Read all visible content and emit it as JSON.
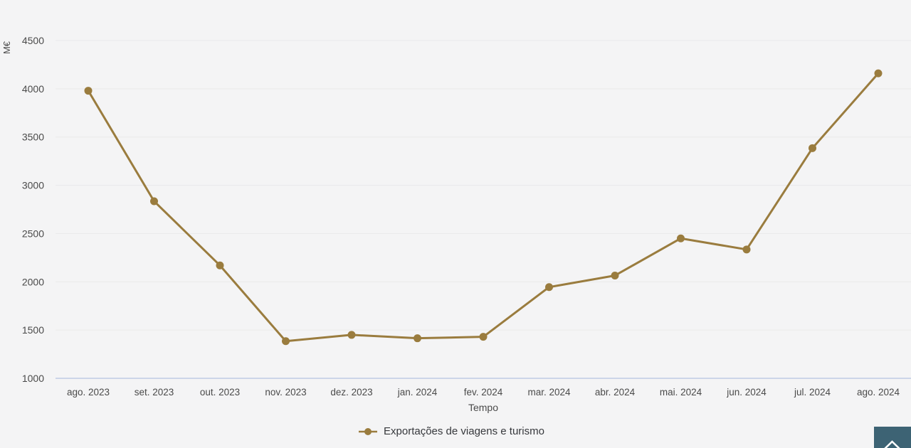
{
  "chart_data": {
    "type": "line",
    "title": "",
    "unit_label": "M€",
    "xlabel": "Tempo",
    "categories": [
      "ago. 2023",
      "set. 2023",
      "out. 2023",
      "nov. 2023",
      "dez. 2023",
      "jan. 2024",
      "fev. 2024",
      "mar. 2024",
      "abr. 2024",
      "mai. 2024",
      "jun. 2024",
      "jul. 2024",
      "ago. 2024"
    ],
    "series": [
      {
        "name": "Exportações de viagens e turismo",
        "values": [
          3980,
          2835,
          2170,
          1385,
          1450,
          1415,
          1430,
          1945,
          2065,
          2450,
          2335,
          3385,
          4160
        ]
      }
    ],
    "ylim": [
      1000,
      4500
    ],
    "ytick_step": 500,
    "yticks": [
      1000,
      1500,
      2000,
      2500,
      3000,
      3500,
      4000,
      4500
    ],
    "grid": true,
    "legend_position": "bottom"
  },
  "legend": {
    "items": [
      {
        "label": "Exportações de viagens e turismo",
        "color": "#9A7C3E"
      }
    ]
  },
  "scroll_button": {
    "icon": "chevron-up"
  },
  "colors": {
    "series": "#9A7C3E",
    "background": "#f4f4f5",
    "gridline": "#e9e9ea",
    "axis_line": "#ccd5e8",
    "tick_text": "#4a4a4a",
    "axis_title_text": "#4a4a4a",
    "legend_text": "#36383c",
    "scroll_button_bg": "#3d6374",
    "scroll_button_icon": "#ffffff"
  }
}
